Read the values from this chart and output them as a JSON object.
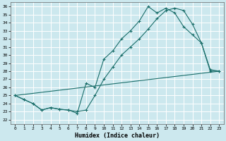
{
  "xlabel": "Humidex (Indice chaleur)",
  "bg_color": "#cce8ee",
  "grid_color": "#ffffff",
  "line_color": "#1a6e6a",
  "xlim": [
    -0.5,
    23.5
  ],
  "ylim": [
    21.5,
    36.5
  ],
  "xticks": [
    0,
    1,
    2,
    3,
    4,
    5,
    6,
    7,
    8,
    9,
    10,
    11,
    12,
    13,
    14,
    15,
    16,
    17,
    18,
    19,
    20,
    21,
    22,
    23
  ],
  "yticks": [
    22,
    23,
    24,
    25,
    26,
    27,
    28,
    29,
    30,
    31,
    32,
    33,
    34,
    35,
    36
  ],
  "line1_x": [
    0,
    1,
    2,
    3,
    4,
    5,
    6,
    7,
    8,
    9,
    10,
    11,
    12,
    13,
    14,
    15,
    16,
    17,
    18,
    19,
    20,
    21,
    22,
    23
  ],
  "line1_y": [
    25.0,
    24.5,
    24.0,
    23.2,
    23.5,
    23.3,
    23.2,
    22.8,
    26.5,
    26.0,
    29.5,
    30.5,
    32.0,
    33.0,
    34.2,
    36.0,
    35.2,
    35.8,
    35.2,
    33.5,
    32.5,
    31.5,
    28.0,
    28.0
  ],
  "line2_x": [
    0,
    1,
    2,
    3,
    4,
    5,
    6,
    7,
    8,
    9,
    10,
    11,
    12,
    13,
    14,
    15,
    16,
    17,
    18,
    19,
    20,
    21,
    22,
    23
  ],
  "line2_y": [
    25.0,
    24.5,
    24.0,
    23.2,
    23.5,
    23.3,
    23.2,
    23.0,
    23.2,
    25.0,
    27.0,
    28.5,
    30.0,
    31.0,
    32.0,
    33.2,
    34.5,
    35.5,
    35.8,
    35.5,
    33.8,
    31.5,
    28.2,
    28.0
  ],
  "line3_x": [
    0,
    23
  ],
  "line3_y": [
    25.0,
    28.0
  ]
}
